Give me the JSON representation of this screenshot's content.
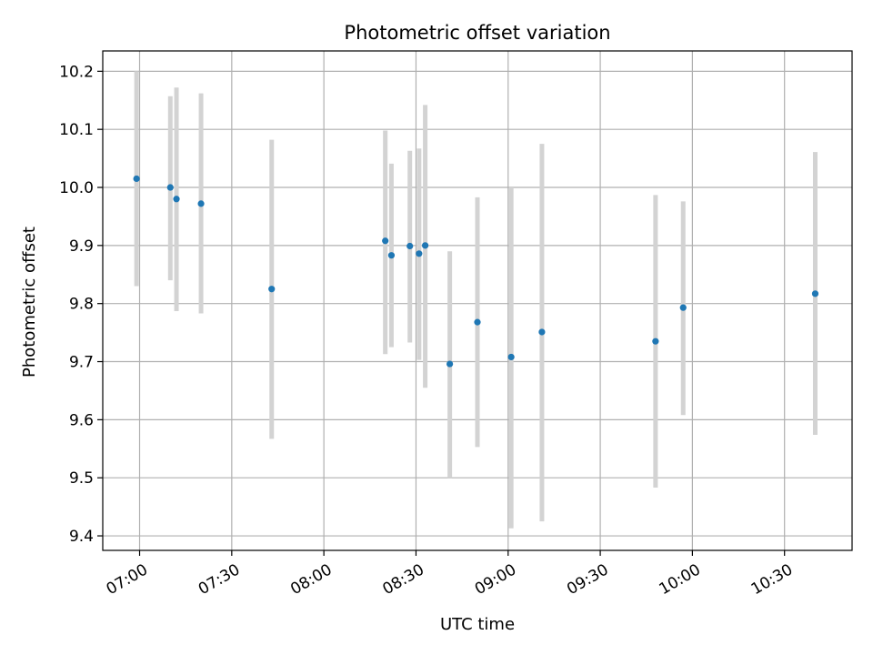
{
  "chart_data": {
    "type": "scatter",
    "title": "Photometric offset variation",
    "xlabel": "UTC time",
    "ylabel": "Photometric offset",
    "x_unit": "time of day (HH:MM)",
    "xlim": [
      "06:48",
      "10:52"
    ],
    "ylim": [
      9.375,
      10.235
    ],
    "grid": true,
    "x_ticks": [
      "07:00",
      "07:30",
      "08:00",
      "08:30",
      "09:00",
      "09:30",
      "10:00",
      "10:30"
    ],
    "y_ticks": [
      9.4,
      9.5,
      9.6,
      9.7,
      9.8,
      9.9,
      10.0,
      10.1,
      10.2
    ],
    "marker_color": "#1f77b4",
    "errorbar_color": "#d3d3d3",
    "points": [
      {
        "x": "06:59",
        "y": 10.015,
        "ylow": 9.83,
        "yhigh": 10.2
      },
      {
        "x": "07:10",
        "y": 10.0,
        "ylow": 9.84,
        "yhigh": 10.157
      },
      {
        "x": "07:12",
        "y": 9.98,
        "ylow": 9.787,
        "yhigh": 10.172
      },
      {
        "x": "07:20",
        "y": 9.972,
        "ylow": 9.783,
        "yhigh": 10.162
      },
      {
        "x": "07:43",
        "y": 9.825,
        "ylow": 9.567,
        "yhigh": 10.082
      },
      {
        "x": "08:20",
        "y": 9.908,
        "ylow": 9.713,
        "yhigh": 10.098
      },
      {
        "x": "08:22",
        "y": 9.883,
        "ylow": 9.725,
        "yhigh": 10.041
      },
      {
        "x": "08:28",
        "y": 9.899,
        "ylow": 9.733,
        "yhigh": 10.063
      },
      {
        "x": "08:31",
        "y": 9.886,
        "ylow": 9.703,
        "yhigh": 10.067
      },
      {
        "x": "08:33",
        "y": 9.9,
        "ylow": 9.655,
        "yhigh": 10.142
      },
      {
        "x": "08:41",
        "y": 9.696,
        "ylow": 9.5,
        "yhigh": 9.89
      },
      {
        "x": "08:50",
        "y": 9.768,
        "ylow": 9.553,
        "yhigh": 9.983
      },
      {
        "x": "09:01",
        "y": 9.708,
        "ylow": 9.413,
        "yhigh": 10.0
      },
      {
        "x": "09:11",
        "y": 9.751,
        "ylow": 9.425,
        "yhigh": 10.075
      },
      {
        "x": "09:48",
        "y": 9.735,
        "ylow": 9.483,
        "yhigh": 9.987
      },
      {
        "x": "09:57",
        "y": 9.793,
        "ylow": 9.608,
        "yhigh": 9.976
      },
      {
        "x": "10:40",
        "y": 9.817,
        "ylow": 9.574,
        "yhigh": 10.061
      }
    ]
  }
}
